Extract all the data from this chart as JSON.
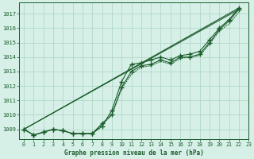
{
  "title": "Graphe pression niveau de la mer (hPa)",
  "background_color": "#d6f0e8",
  "grid_color": "#b0d8c8",
  "line_color": "#1a5c2a",
  "xlim": [
    -0.5,
    23
  ],
  "ylim": [
    1008.3,
    1017.8
  ],
  "yticks": [
    1009,
    1010,
    1011,
    1012,
    1013,
    1014,
    1015,
    1016,
    1017
  ],
  "xticks": [
    0,
    1,
    2,
    3,
    4,
    5,
    6,
    7,
    8,
    9,
    10,
    11,
    12,
    13,
    14,
    15,
    16,
    17,
    18,
    19,
    20,
    21,
    22,
    23
  ],
  "series_with_markers": [
    {
      "x": [
        0,
        1,
        2,
        3,
        4,
        5,
        6,
        7,
        8,
        9,
        10,
        11,
        12,
        13,
        14,
        15,
        16,
        17,
        18,
        19,
        20,
        21,
        22
      ],
      "y": [
        1009.0,
        1008.6,
        1008.8,
        1009.0,
        1008.9,
        1008.7,
        1008.7,
        1008.7,
        1009.4,
        1010.0,
        1011.9,
        1013.0,
        1013.4,
        1013.5,
        1013.8,
        1013.6,
        1014.0,
        1014.0,
        1014.2,
        1015.0,
        1015.9,
        1016.5,
        1017.3
      ]
    },
    {
      "x": [
        0,
        1,
        2,
        3,
        4,
        5,
        6,
        7,
        8,
        9,
        10,
        11,
        12,
        13,
        14,
        15,
        16,
        17,
        18,
        19,
        20,
        21,
        22
      ],
      "y": [
        1009.0,
        1008.6,
        1008.8,
        1009.0,
        1008.9,
        1008.7,
        1008.7,
        1008.7,
        1009.2,
        1010.3,
        1012.3,
        1013.5,
        1013.6,
        1013.8,
        1014.0,
        1013.8,
        1014.1,
        1014.2,
        1014.4,
        1015.2,
        1016.0,
        1016.6,
        1017.4
      ]
    }
  ],
  "series_line_only": [
    {
      "x": [
        0,
        22
      ],
      "y": [
        1009.0,
        1017.3
      ]
    },
    {
      "x": [
        0,
        22
      ],
      "y": [
        1009.0,
        1017.4
      ]
    }
  ],
  "series_dotted": [
    {
      "x": [
        0,
        1,
        2,
        3,
        4,
        5,
        6,
        7,
        8,
        9,
        10,
        11,
        12,
        13,
        14,
        15,
        16,
        17,
        18,
        19,
        20,
        21,
        22
      ],
      "y": [
        1009.0,
        1008.6,
        1008.8,
        1009.0,
        1008.9,
        1008.7,
        1008.7,
        1008.7,
        1009.3,
        1010.0,
        1011.8,
        1012.8,
        1013.3,
        1013.4,
        1013.7,
        1013.5,
        1013.9,
        1014.0,
        1014.1,
        1014.9,
        1015.8,
        1016.3,
        1017.1
      ]
    }
  ]
}
